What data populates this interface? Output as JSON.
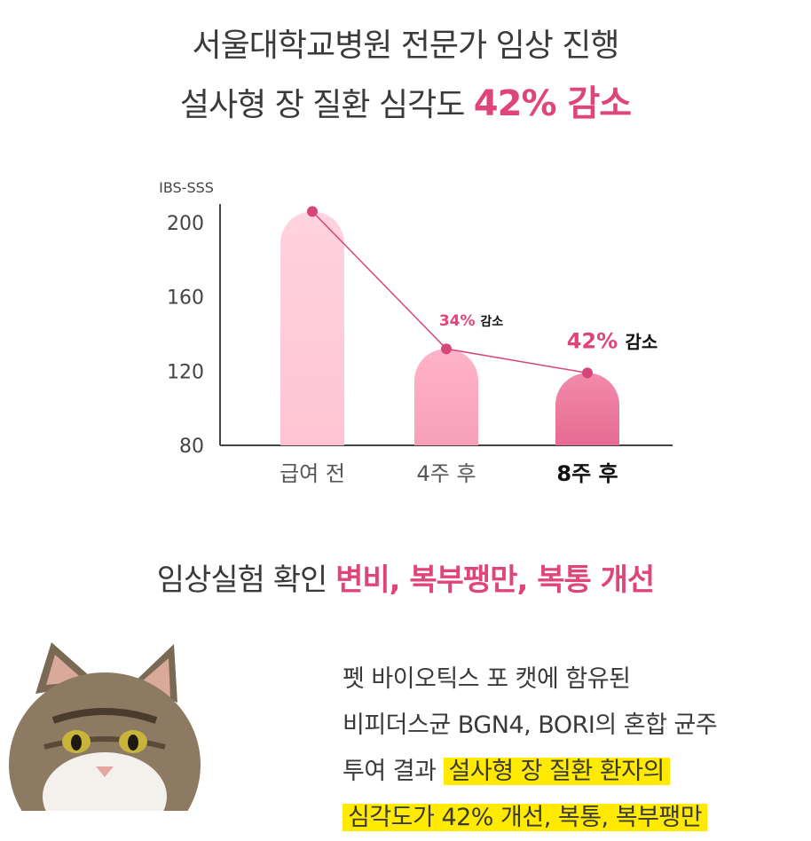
{
  "header": {
    "line1": "서울대학교병원 전문가 임상 진행",
    "line2_prefix": "설사형 장 질환 심각도 ",
    "line2_accent": "42% 감소"
  },
  "chart_data": {
    "type": "bar",
    "title": "",
    "ylabel": "IBS-SSS",
    "categories": [
      "급여 전",
      "4주 후",
      "8주 후"
    ],
    "values": [
      206,
      132,
      119
    ],
    "ylim": [
      80,
      210
    ],
    "yticks": [
      200,
      160,
      120,
      80
    ],
    "series_line": true,
    "annotations": [
      {
        "category": "4주 후",
        "pct": "34%",
        "word": "감소"
      },
      {
        "category": "8주 후",
        "pct": "42%",
        "word": "감소"
      }
    ],
    "colors": {
      "bar1_top": "#ffd3df",
      "bar1_bottom": "#ffc4d3",
      "bar2_top": "#ffb3c8",
      "bar2_bottom": "#f7a0b9",
      "bar3_top": "#f28bab",
      "bar3_bottom": "#e66b93",
      "line": "#d6467a",
      "accent": "#e0457a"
    }
  },
  "section": {
    "title_prefix": "임상실험 확인 ",
    "title_accent": "변비, 복부팽만, 복통 개선"
  },
  "body": {
    "line1": "펫 바이오틱스 포 캣에 함유된",
    "line2": "비피더스균 BGN4, BORI의 혼합 균주",
    "line3_prefix": "투여 결과 ",
    "line3_highlight": "설사형 장 질환 환자의",
    "line4_highlight": "심각도가 42% 개선, 복통, 복부팽만"
  }
}
